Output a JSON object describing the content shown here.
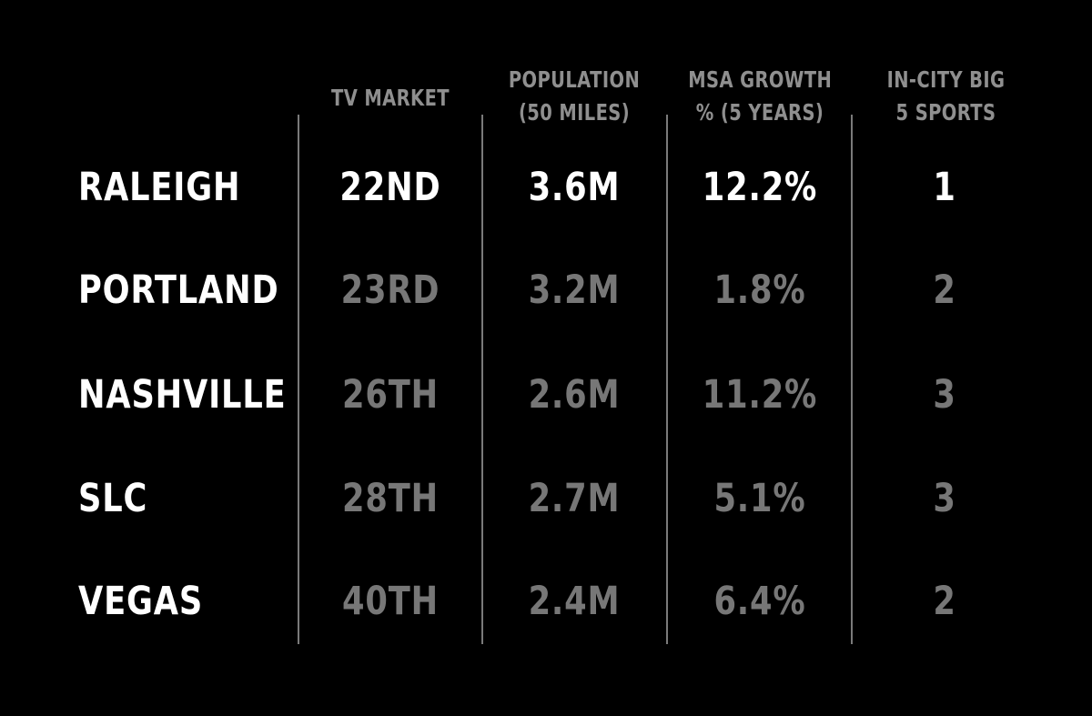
{
  "headers": {
    "tv_market": "TV MARKET",
    "population_line1": "POPULATION",
    "population_line2": "(50 MILES)",
    "growth_line1": "MSA GROWTH",
    "growth_line2": "% (5 YEARS)",
    "sports_line1": "IN-CITY BIG",
    "sports_line2": "5 SPORTS"
  },
  "rows": [
    {
      "city": "RALEIGH",
      "tv_market": "22ND",
      "population": "3.6M",
      "growth": "12.2%",
      "sports": "1",
      "highlight": true
    },
    {
      "city": "PORTLAND",
      "tv_market": "23RD",
      "population": "3.2M",
      "growth": "1.8%",
      "sports": "2",
      "highlight": false
    },
    {
      "city": "NASHVILLE",
      "tv_market": "26TH",
      "population": "2.6M",
      "growth": "11.2%",
      "sports": "3",
      "highlight": false
    },
    {
      "city": "SLC",
      "tv_market": "28TH",
      "population": "2.7M",
      "growth": "5.1%",
      "sports": "3",
      "highlight": false
    },
    {
      "city": "VEGAS",
      "tv_market": "40TH",
      "population": "2.4M",
      "growth": "6.4%",
      "sports": "2",
      "highlight": false
    }
  ],
  "colors": {
    "background": "#000000",
    "highlight_text": "#ffffff",
    "muted_text": "#777777",
    "header_text": "#8f8f8f",
    "divider": "#7a7a7a"
  }
}
